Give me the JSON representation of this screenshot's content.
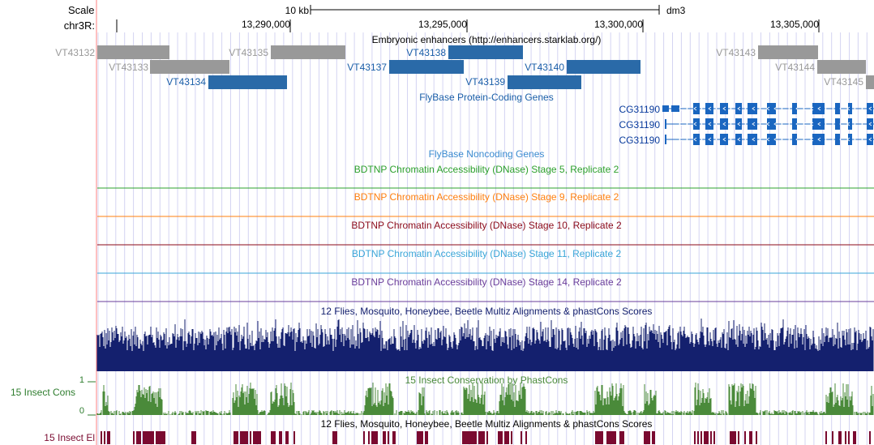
{
  "scale": {
    "label": "Scale",
    "bar_label": "10 kb",
    "assembly": "dm3"
  },
  "chrom": {
    "label": "chr3R:",
    "ticks": [
      "13,290,000",
      "13,295,000",
      "13,300,000",
      "13,305,000"
    ]
  },
  "tracks": {
    "enhancers": {
      "title": "Embryonic enhancers (http://enhancers.starklab.org/)",
      "items": [
        "VT43132",
        "VT43133",
        "VT43134",
        "VT43135",
        "VT43137",
        "VT43138",
        "VT43139",
        "VT43140",
        "VT43143",
        "VT43144",
        "VT43145"
      ]
    },
    "protein_genes": {
      "title": "FlyBase Protein-Coding Genes",
      "items": [
        "CG31190",
        "CG31190",
        "CG31190"
      ]
    },
    "noncoding": {
      "title": "FlyBase Noncoding Genes"
    },
    "dnase": [
      {
        "title": "BDTNP Chromatin Accessibility (DNase) Stage 5, Replicate 2",
        "color": "#2ca02c"
      },
      {
        "title": "BDTNP Chromatin Accessibility (DNase) Stage 9, Replicate 2",
        "color": "#ff7f0e"
      },
      {
        "title": "BDTNP Chromatin Accessibility (DNase) Stage 10, Replicate 2",
        "color": "#8b0a1a"
      },
      {
        "title": "BDTNP Chromatin Accessibility (DNase) Stage 11, Replicate 2",
        "color": "#3aa6d8"
      },
      {
        "title": "BDTNP Chromatin Accessibility (DNase) Stage 14, Replicate 2",
        "color": "#6a3d9a"
      }
    ],
    "multiz": {
      "title": "12 Flies, Mosquito, Honeybee, Beetle Multiz Alignments & phastCons Scores"
    },
    "phastcons": {
      "title": "15 Insect Conservation by PhastCons",
      "side_label": "15 Insect Cons",
      "max": "1",
      "min": "0"
    },
    "elements": {
      "title": "12 Flies, Mosquito, Honeybee, Beetle Multiz Alignments & phastCons Scores",
      "side_label": "15 Insect El"
    }
  },
  "colors": {
    "grey_item": "#999999",
    "blue_item": "#2a6aa8",
    "gene": "#1a66c0",
    "gene_label": "#0a3c9c",
    "enh_label_blue": "#1a5ea8",
    "grid": "#c8c8f0",
    "sep": "#ff8080",
    "multiz": "#14206e",
    "cons": "#4a8a3a",
    "elem": "#7a0a30"
  }
}
